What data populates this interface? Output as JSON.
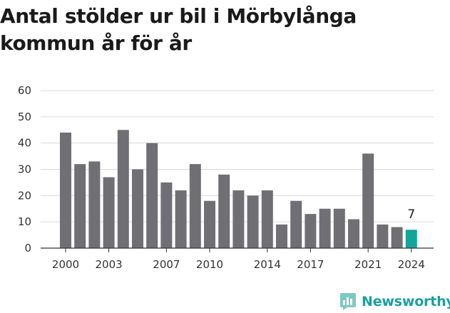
{
  "title": "Antal stölder ur bil i Mörbylånga kommun år för år",
  "brand": {
    "name": "Newsworthy",
    "color": "#1aa39d"
  },
  "colors": {
    "bar": "#706f74",
    "highlight": "#12a69a",
    "grid": "#d9d9d9",
    "axis": "#333333"
  },
  "chart_data": {
    "type": "bar",
    "title": "Antal stölder ur bil i Mörbylånga kommun år för år",
    "xlabel": "",
    "ylabel": "",
    "ylim": [
      0,
      60
    ],
    "yticks": [
      0,
      10,
      20,
      30,
      40,
      50,
      60
    ],
    "xtick_labels": [
      "2000",
      "2003",
      "2007",
      "2010",
      "2014",
      "2017",
      "2021",
      "2024"
    ],
    "categories": [
      "2000",
      "2001",
      "2002",
      "2003",
      "2004",
      "2005",
      "2006",
      "2007",
      "2008",
      "2009",
      "2010",
      "2011",
      "2012",
      "2013",
      "2014",
      "2015",
      "2016",
      "2017",
      "2018",
      "2019",
      "2020",
      "2021",
      "2022",
      "2023",
      "2024"
    ],
    "values": [
      44,
      32,
      33,
      27,
      45,
      30,
      40,
      25,
      22,
      32,
      18,
      28,
      22,
      20,
      22,
      9,
      18,
      13,
      15,
      15,
      11,
      36,
      9,
      8,
      7
    ],
    "highlight": {
      "category": "2024",
      "label": "7"
    },
    "grid": true
  }
}
